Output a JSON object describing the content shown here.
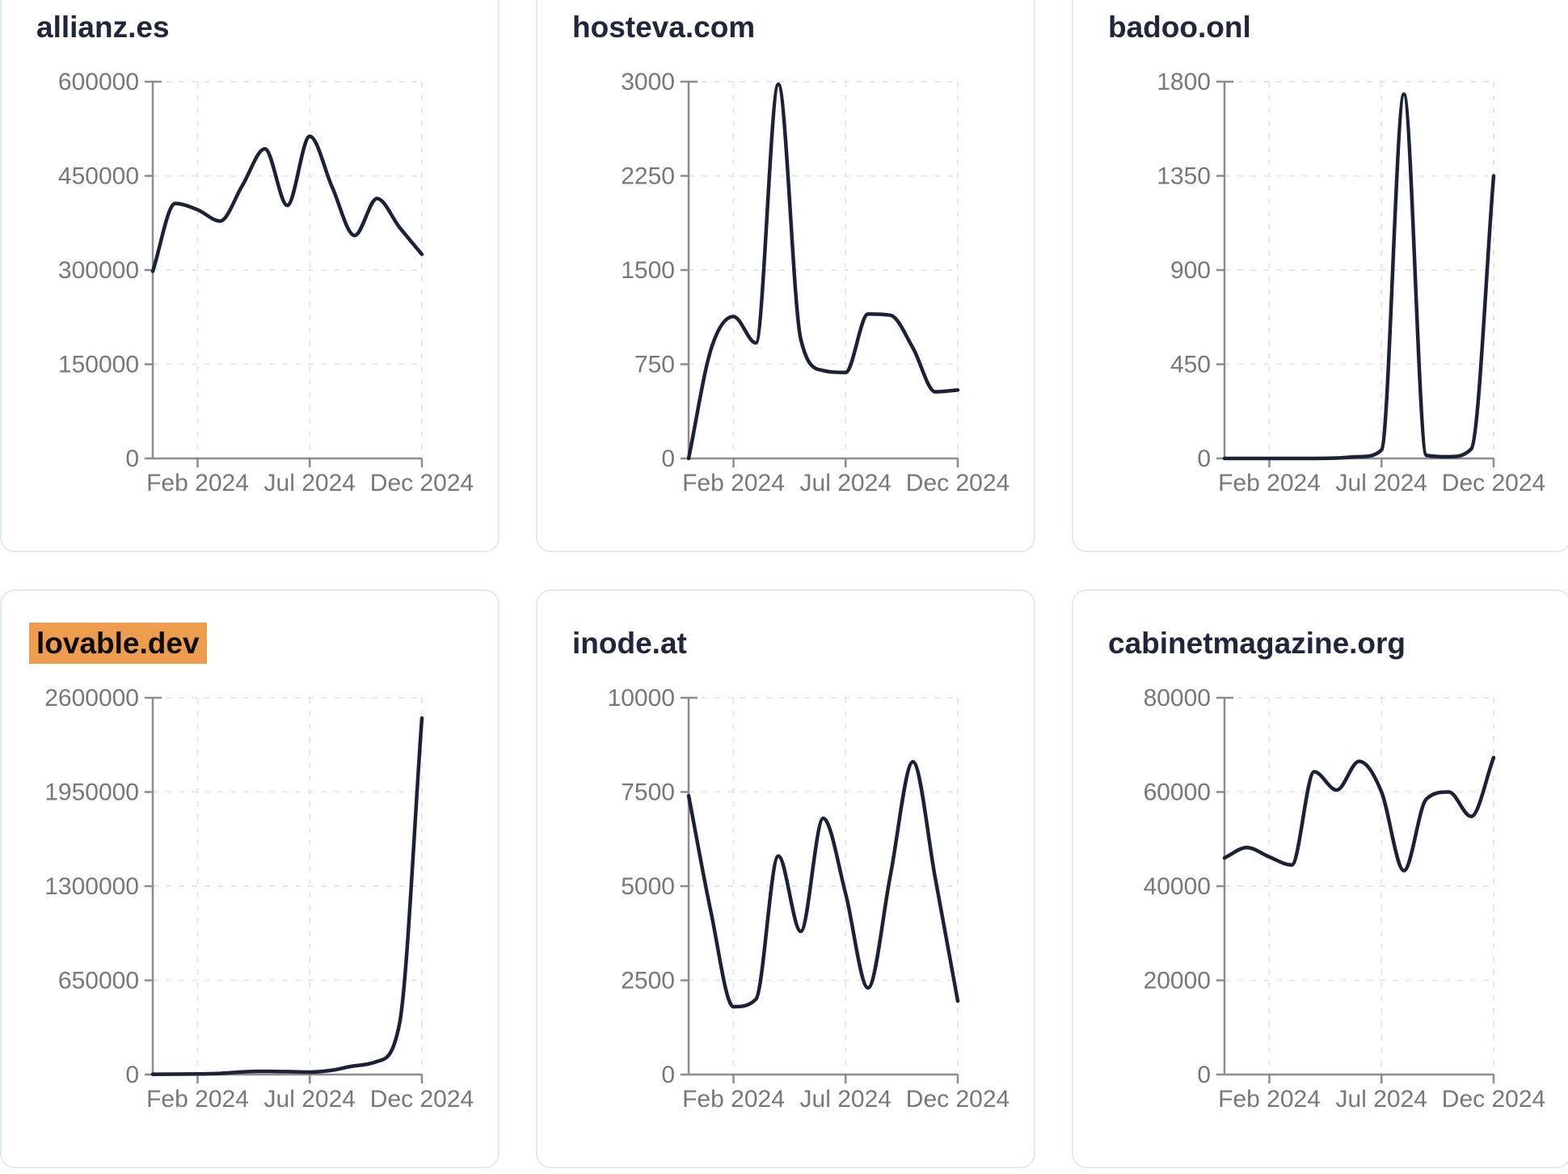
{
  "page": {
    "background": "#ffffff",
    "description": "Grid of six mini line charts of monthly traffic per domain"
  },
  "colors": {
    "line": "#1c2236",
    "axis": "#8a8c90",
    "tick_label": "#76787d",
    "grid": "#e6e7ea",
    "card_border": "#e4e9f2",
    "title": "#20273a",
    "highlight": "#ee9c4e",
    "highlight_text": "#0d0d0d"
  },
  "x_axis_tick_labels": [
    "Feb 2024",
    "Jul 2024",
    "Dec 2024"
  ],
  "chart_data": [
    {
      "type": "line",
      "title": "allianz.es",
      "title_highlighted": false,
      "x": [
        "Dec 2023",
        "Jan 2024",
        "Feb 2024",
        "Mar 2024",
        "Apr 2024",
        "May 2024",
        "Jun 2024",
        "Jul 2024",
        "Aug 2024",
        "Sep 2024",
        "Oct 2024",
        "Nov 2024",
        "Dec 2024"
      ],
      "values": [
        298000,
        406000,
        396000,
        378000,
        435000,
        493000,
        403000,
        513000,
        432000,
        355000,
        414000,
        368000,
        325000
      ],
      "ylim": [
        0,
        600000
      ],
      "y_ticks": [
        0,
        150000,
        300000,
        450000,
        600000
      ],
      "x_ticks": [
        "Feb 2024",
        "Jul 2024",
        "Dec 2024"
      ],
      "x_tick_indices": [
        2,
        7,
        12
      ],
      "grid": "dashed",
      "legend": null
    },
    {
      "type": "line",
      "title": "hosteva.com",
      "title_highlighted": false,
      "x": [
        "Dec 2023",
        "Jan 2024",
        "Feb 2024",
        "Mar 2024",
        "Apr 2024",
        "May 2024",
        "Jun 2024",
        "Jul 2024",
        "Aug 2024",
        "Sep 2024",
        "Oct 2024",
        "Nov 2024",
        "Dec 2024"
      ],
      "values": [
        0,
        870,
        1130,
        920,
        2980,
        950,
        700,
        685,
        1150,
        1140,
        880,
        530,
        545
      ],
      "ylim": [
        0,
        3000
      ],
      "y_ticks": [
        0,
        750,
        1500,
        2250,
        3000
      ],
      "x_ticks": [
        "Feb 2024",
        "Jul 2024",
        "Dec 2024"
      ],
      "x_tick_indices": [
        2,
        7,
        12
      ],
      "grid": "dashed",
      "legend": null
    },
    {
      "type": "line",
      "title": "badoo.onl",
      "title_highlighted": false,
      "x": [
        "Dec 2023",
        "Jan 2024",
        "Feb 2024",
        "Mar 2024",
        "Apr 2024",
        "May 2024",
        "Jun 2024",
        "Jul 2024",
        "Aug 2024",
        "Sep 2024",
        "Oct 2024",
        "Nov 2024",
        "Dec 2024"
      ],
      "values": [
        0,
        0,
        0,
        0,
        0,
        2,
        8,
        40,
        1740,
        15,
        8,
        45,
        1350
      ],
      "ylim": [
        0,
        1800
      ],
      "y_ticks": [
        0,
        450,
        900,
        1350,
        1800
      ],
      "x_ticks": [
        "Feb 2024",
        "Jul 2024",
        "Dec 2024"
      ],
      "x_tick_indices": [
        2,
        7,
        12
      ],
      "grid": "dashed",
      "legend": null
    },
    {
      "type": "line",
      "title": "lovable.dev",
      "title_highlighted": true,
      "x": [
        "Dec 2023",
        "Jan 2024",
        "Feb 2024",
        "Mar 2024",
        "Apr 2024",
        "May 2024",
        "Jun 2024",
        "Jul 2024",
        "Aug 2024",
        "Sep 2024",
        "Oct 2024",
        "Nov 2024",
        "Dec 2024"
      ],
      "values": [
        2000,
        2500,
        4000,
        8000,
        18000,
        22000,
        20000,
        17000,
        30000,
        60000,
        90000,
        350000,
        2460000
      ],
      "ylim": [
        0,
        2600000
      ],
      "y_ticks": [
        0,
        650000,
        1300000,
        1950000,
        2600000
      ],
      "x_ticks": [
        "Feb 2024",
        "Jul 2024",
        "Dec 2024"
      ],
      "x_tick_indices": [
        2,
        7,
        12
      ],
      "grid": "dashed",
      "legend": null
    },
    {
      "type": "line",
      "title": "inode.at",
      "title_highlighted": false,
      "x": [
        "Dec 2023",
        "Jan 2024",
        "Feb 2024",
        "Mar 2024",
        "Apr 2024",
        "May 2024",
        "Jun 2024",
        "Jul 2024",
        "Aug 2024",
        "Sep 2024",
        "Oct 2024",
        "Nov 2024",
        "Dec 2024"
      ],
      "values": [
        7400,
        4300,
        1800,
        2000,
        5800,
        3800,
        6800,
        4800,
        2300,
        5300,
        8300,
        5200,
        1950
      ],
      "ylim": [
        0,
        10000
      ],
      "y_ticks": [
        0,
        2500,
        5000,
        7500,
        10000
      ],
      "x_ticks": [
        "Feb 2024",
        "Jul 2024",
        "Dec 2024"
      ],
      "x_tick_indices": [
        2,
        7,
        12
      ],
      "grid": "dashed",
      "legend": null
    },
    {
      "type": "line",
      "title": "cabinetmagazine.org",
      "title_highlighted": false,
      "x": [
        "Dec 2023",
        "Jan 2024",
        "Feb 2024",
        "Mar 2024",
        "Apr 2024",
        "May 2024",
        "Jun 2024",
        "Jul 2024",
        "Aug 2024",
        "Sep 2024",
        "Oct 2024",
        "Nov 2024",
        "Dec 2024"
      ],
      "values": [
        46000,
        48200,
        46200,
        44500,
        64300,
        60400,
        66500,
        60000,
        43300,
        58500,
        60000,
        54800,
        67300
      ],
      "ylim": [
        0,
        80000
      ],
      "y_ticks": [
        0,
        20000,
        40000,
        60000,
        80000
      ],
      "x_ticks": [
        "Feb 2024",
        "Jul 2024",
        "Dec 2024"
      ],
      "x_tick_indices": [
        2,
        7,
        12
      ],
      "grid": "dashed",
      "legend": null
    }
  ]
}
